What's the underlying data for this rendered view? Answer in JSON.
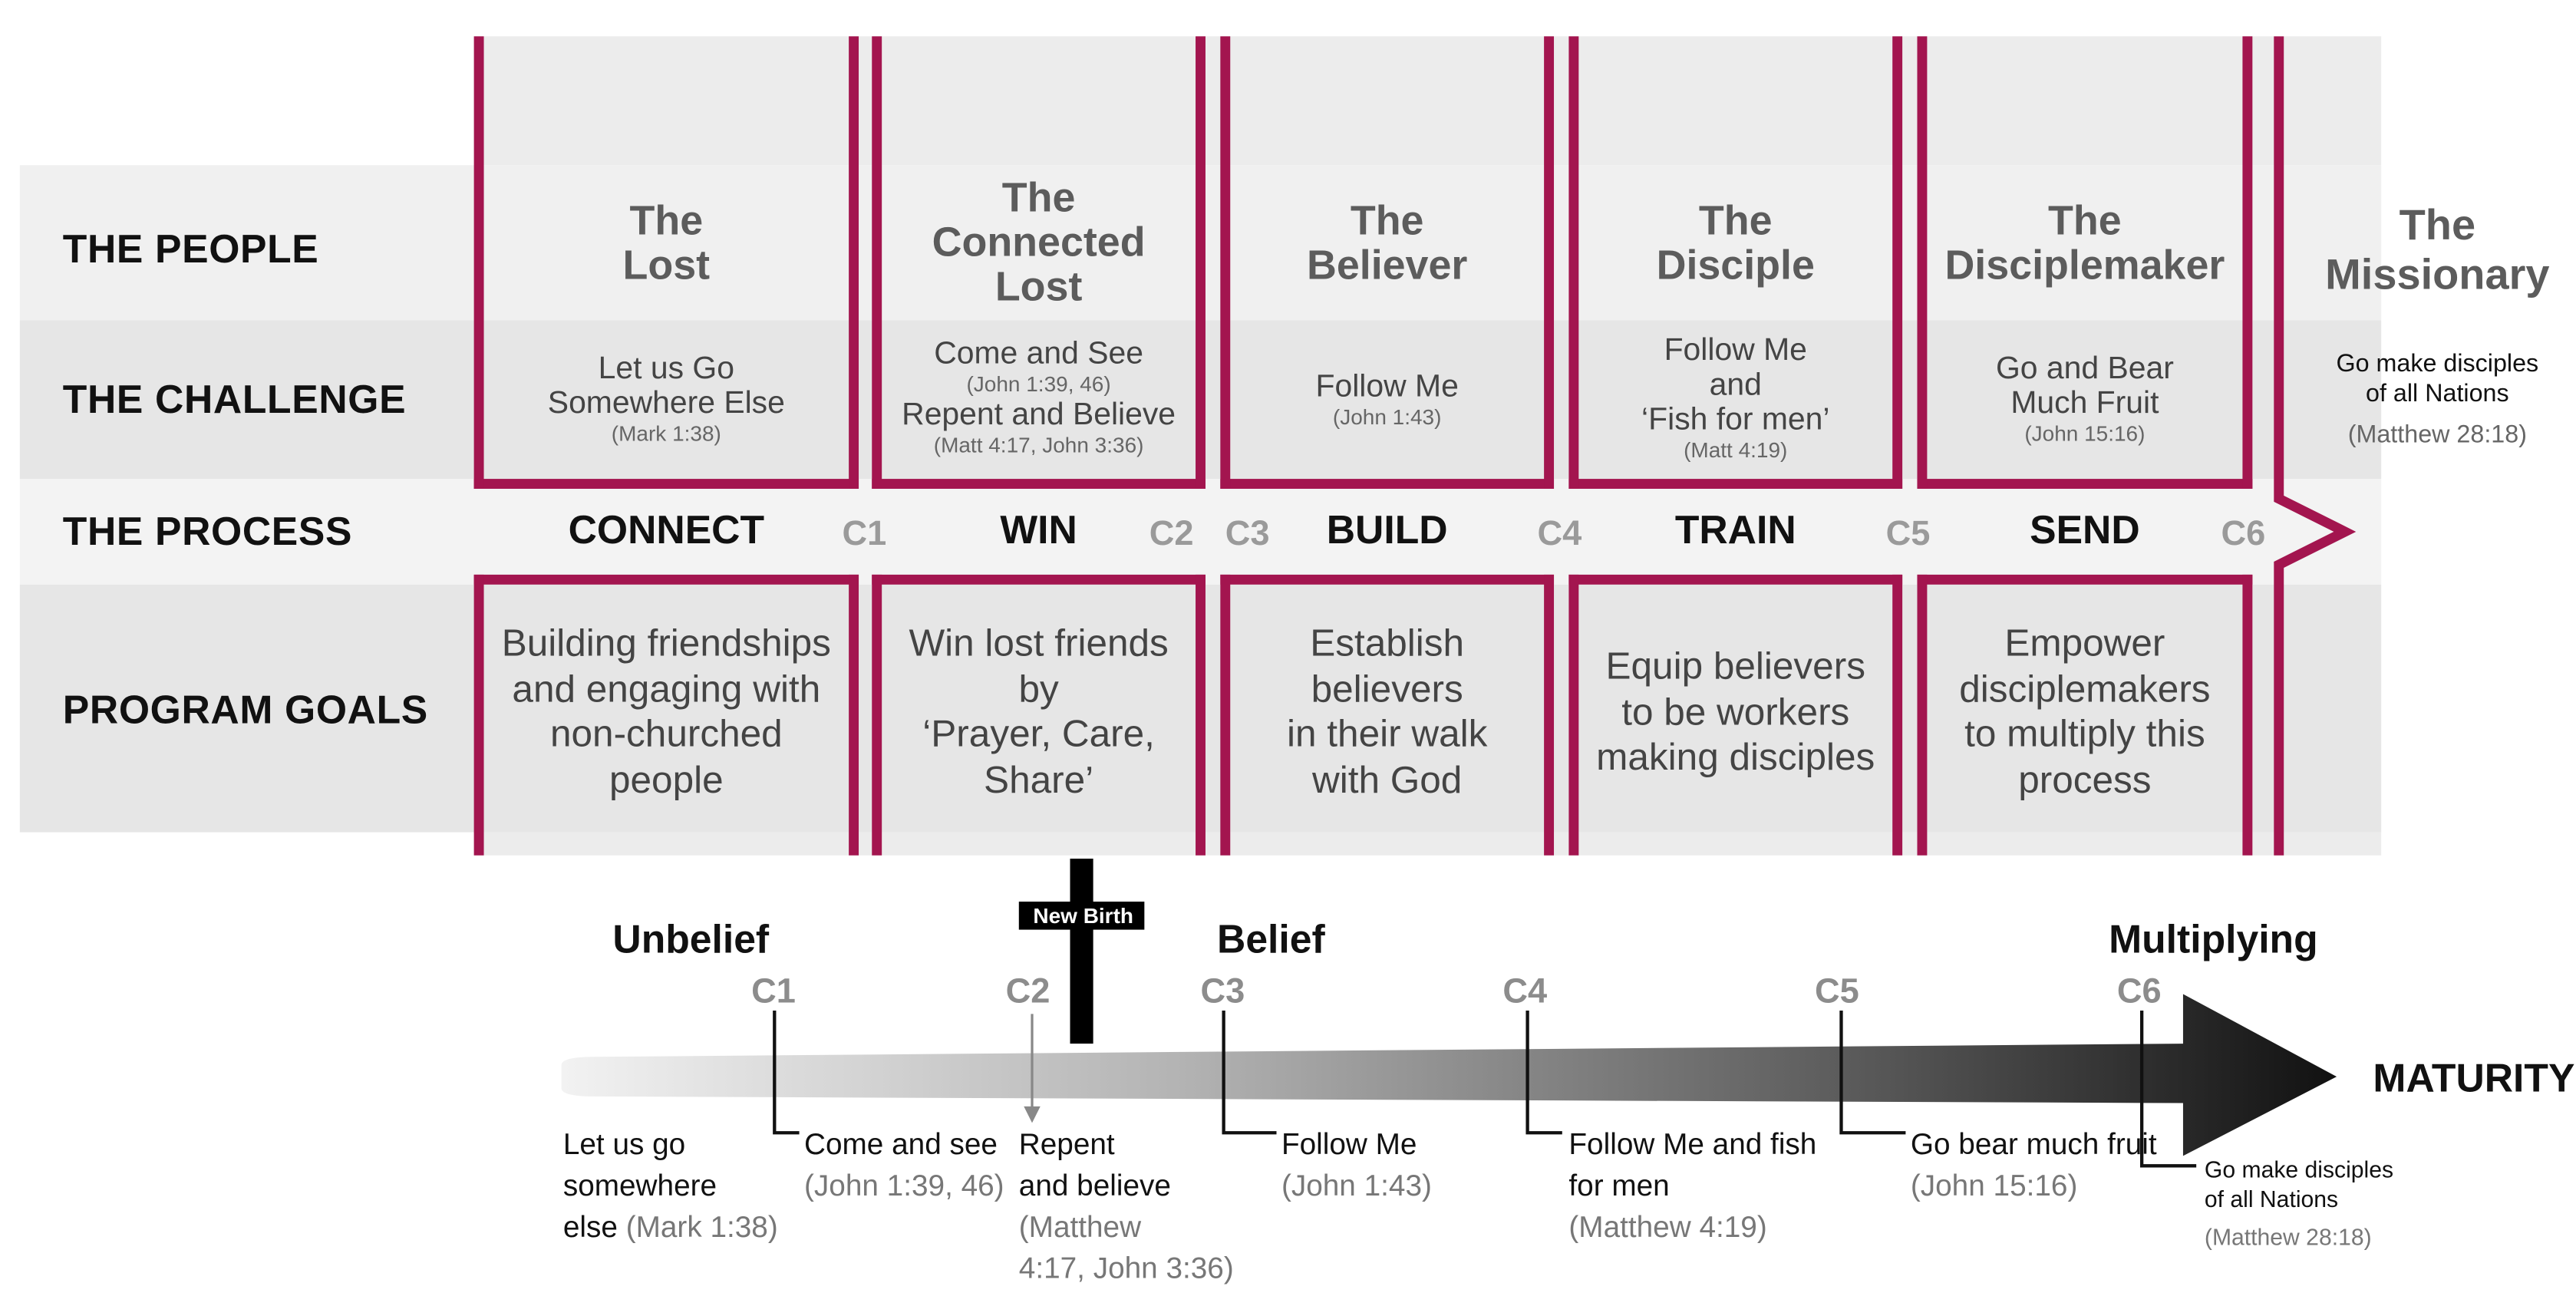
{
  "colors": {
    "frame": "#a3154f",
    "band_light": "#f0f0f0",
    "band_dark": "#e6e6e6"
  },
  "rows": {
    "people": "THE PEOPLE",
    "challenge": "THE CHALLENGE",
    "process": "THE PROCESS",
    "goals": "PROGRAM GOALS"
  },
  "columns": [
    {
      "people": [
        "The",
        "Lost"
      ],
      "challenge": [
        "Let us Go",
        "Somewhere Else"
      ],
      "ref": "(Mark 1:38)",
      "process": "CONNECT",
      "goal": [
        "Building friendships",
        "and engaging with",
        "non-churched",
        "people"
      ]
    },
    {
      "people": [
        "The",
        "Connected",
        "Lost"
      ],
      "challenge": [
        "Come and See"
      ],
      "ref": "(John 1:39, 46)",
      "challenge2": "Repent and Believe",
      "ref2": "(Matt 4:17, John 3:36)",
      "process": "WIN",
      "goal": [
        "Win lost friends",
        "by",
        "‘Prayer, Care,",
        "Share’"
      ]
    },
    {
      "people": [
        "The",
        "Believer"
      ],
      "challenge": [
        "Follow Me"
      ],
      "ref": "(John 1:43)",
      "process": "BUILD",
      "goal": [
        "Establish",
        "believers",
        "in their walk",
        "with God"
      ]
    },
    {
      "people": [
        "The",
        "Disciple"
      ],
      "challenge": [
        "Follow Me",
        "and",
        "‘Fish for men’"
      ],
      "ref": "(Matt 4:19)",
      "process": "TRAIN",
      "goal": [
        "Equip believers",
        "to be workers",
        "making disciples"
      ]
    },
    {
      "people": [
        "The",
        "Disciplemaker"
      ],
      "challenge": [
        "Go and Bear",
        "Much Fruit"
      ],
      "ref": "(John 15:16)",
      "process": "SEND",
      "goal": [
        "Empower",
        "disciplemakers",
        "to multiply this",
        "process"
      ]
    }
  ],
  "missionary": {
    "people": [
      "The",
      "Missionary"
    ],
    "challenge": [
      "Go make disciples",
      "of all Nations"
    ],
    "ref": "(Matthew 28:18)"
  },
  "process_markers": [
    "C1",
    "C2",
    "C3",
    "C4",
    "C5",
    "C6"
  ],
  "timeline": {
    "new_birth": "New Birth",
    "stages": [
      "Unbelief",
      "Belief",
      "Multiplying"
    ],
    "markers": [
      "C1",
      "C2",
      "C3",
      "C4",
      "C5",
      "C6"
    ],
    "end_label": "MATURITY",
    "start_text": [
      "Let us go",
      "somewhere",
      "else"
    ],
    "start_ref": "(Mark 1:38)",
    "steps": [
      {
        "lines": [
          "Come and see"
        ],
        "ref": [
          "(John 1:39, 46)"
        ]
      },
      {
        "lines": [
          "Repent",
          "and believe"
        ],
        "ref": [
          "(Matthew",
          "4:17, John 3:36)"
        ]
      },
      {
        "lines": [
          "Follow Me"
        ],
        "ref": [
          "(John 1:43)"
        ]
      },
      {
        "lines": [
          "Follow Me and fish",
          "for men"
        ],
        "ref": [
          "(Matthew 4:19)"
        ]
      },
      {
        "lines": [
          "Go bear much fruit"
        ],
        "ref": [
          "(John 15:16)"
        ]
      },
      {
        "lines": [
          "Go make disciples",
          "of all Nations"
        ],
        "ref": [
          "(Matthew 28:18)"
        ]
      }
    ]
  }
}
